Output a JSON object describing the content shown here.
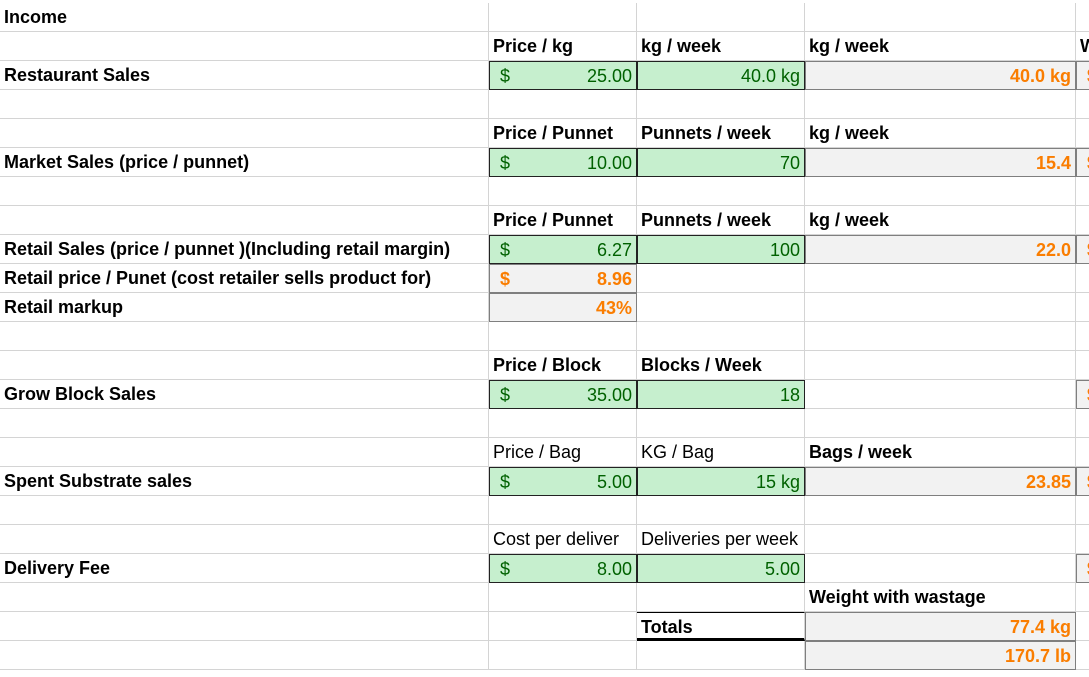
{
  "colors": {
    "input_bg": "#c6efce",
    "input_text": "#006100",
    "calc_bg": "#f2f2f2",
    "calc_text": "#fa7d00"
  },
  "rows": [
    [
      {
        "col": "A",
        "text": "Income",
        "bold": true
      }
    ],
    [
      {
        "col": "B",
        "text": "Price / kg",
        "bold": true
      },
      {
        "col": "C",
        "text": "kg / week",
        "bold": true
      },
      {
        "col": "D",
        "text": "kg / week",
        "bold": true
      },
      {
        "col": "E",
        "text": "W",
        "bold": true
      }
    ],
    [
      {
        "col": "A",
        "text": "Restaurant Sales",
        "bold": true
      },
      {
        "col": "B",
        "kind": "input",
        "currency": "$",
        "text": "25.00"
      },
      {
        "col": "C",
        "kind": "input",
        "text": "40.0 kg"
      },
      {
        "col": "D",
        "kind": "calc",
        "text": "40.0 kg"
      },
      {
        "col": "E",
        "kind": "calc",
        "currency": "$",
        "text": ""
      }
    ],
    [],
    [
      {
        "col": "B",
        "text": "Price / Punnet",
        "bold": true
      },
      {
        "col": "C",
        "text": "Punnets / week",
        "bold": true
      },
      {
        "col": "D",
        "text": "kg / week",
        "bold": true
      }
    ],
    [
      {
        "col": "A",
        "text": "Market Sales (price / punnet)",
        "bold": true
      },
      {
        "col": "B",
        "kind": "input",
        "currency": "$",
        "text": "10.00"
      },
      {
        "col": "C",
        "kind": "input",
        "text": "70"
      },
      {
        "col": "D",
        "kind": "calc",
        "text": "15.4"
      },
      {
        "col": "E",
        "kind": "calc",
        "currency": "$",
        "text": ""
      }
    ],
    [],
    [
      {
        "col": "B",
        "text": "Price / Punnet",
        "bold": true
      },
      {
        "col": "C",
        "text": "Punnets / week",
        "bold": true
      },
      {
        "col": "D",
        "text": "kg / week",
        "bold": true
      }
    ],
    [
      {
        "col": "A",
        "text": "Retail Sales (price / punnet )(Including retail margin)",
        "bold": true
      },
      {
        "col": "B",
        "kind": "input",
        "currency": "$",
        "text": "6.27"
      },
      {
        "col": "C",
        "kind": "input",
        "text": "100"
      },
      {
        "col": "D",
        "kind": "calc",
        "text": "22.0"
      },
      {
        "col": "E",
        "kind": "calc",
        "currency": "$",
        "text": ""
      }
    ],
    [
      {
        "col": "A",
        "text": "Retail price / Punet (cost retailer sells product for)",
        "bold": true
      },
      {
        "col": "B",
        "kind": "calc",
        "currency": "$",
        "text": "8.96"
      }
    ],
    [
      {
        "col": "A",
        "text": "Retail markup",
        "bold": true
      },
      {
        "col": "B",
        "kind": "calc",
        "text": "43%"
      }
    ],
    [],
    [
      {
        "col": "B",
        "text": "Price / Block",
        "bold": true
      },
      {
        "col": "C",
        "text": "Blocks / Week",
        "bold": true
      }
    ],
    [
      {
        "col": "A",
        "text": "Grow Block Sales",
        "bold": true
      },
      {
        "col": "B",
        "kind": "input",
        "currency": "$",
        "text": "35.00"
      },
      {
        "col": "C",
        "kind": "input",
        "text": "18"
      },
      {
        "col": "E",
        "kind": "calc",
        "currency": "$",
        "text": ""
      }
    ],
    [],
    [
      {
        "col": "B",
        "text": "Price / Bag"
      },
      {
        "col": "C",
        "text": "KG / Bag"
      },
      {
        "col": "D",
        "text": "Bags / week",
        "bold": true
      }
    ],
    [
      {
        "col": "A",
        "text": "Spent Substrate sales",
        "bold": true
      },
      {
        "col": "B",
        "kind": "input",
        "currency": "$",
        "text": "5.00"
      },
      {
        "col": "C",
        "kind": "input",
        "text": "15 kg"
      },
      {
        "col": "D",
        "kind": "calc",
        "text": "23.85"
      },
      {
        "col": "E",
        "kind": "calc",
        "currency": "$",
        "text": ""
      }
    ],
    [],
    [
      {
        "col": "B",
        "text": "Cost per deliver"
      },
      {
        "col": "C",
        "text": "Deliveries per week",
        "overflow": true
      }
    ],
    [
      {
        "col": "A",
        "text": "Delivery Fee",
        "bold": true
      },
      {
        "col": "B",
        "kind": "input",
        "currency": "$",
        "text": "8.00"
      },
      {
        "col": "C",
        "kind": "input",
        "text": "5.00"
      },
      {
        "col": "E",
        "kind": "calc",
        "currency": "$",
        "text": ""
      }
    ],
    [
      {
        "col": "D",
        "text": "Weight with wastage",
        "bold": true
      }
    ],
    [
      {
        "col": "C",
        "text": "Totals",
        "bold": true,
        "total": true
      },
      {
        "col": "D",
        "kind": "calc",
        "text": "77.4 kg",
        "total": true
      }
    ],
    [
      {
        "col": "D",
        "kind": "calc",
        "text": "170.7 lb"
      }
    ]
  ]
}
